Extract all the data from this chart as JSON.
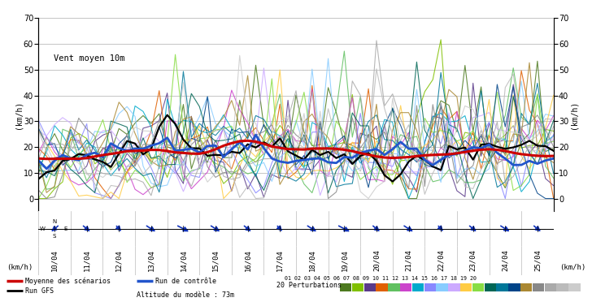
{
  "ylabel_left": "(km/h)",
  "ylabel_right": "(km/h)",
  "ylim": [
    -5,
    70
  ],
  "yticks": [
    0,
    10,
    20,
    30,
    40,
    50,
    60,
    70
  ],
  "x_labels": [
    "10/04",
    "11/04",
    "12/04",
    "13/04",
    "14/04",
    "15/04",
    "16/04",
    "17/04",
    "18/04",
    "19/04",
    "20/04",
    "21/04",
    "22/04",
    "23/04",
    "24/04",
    "25/04"
  ],
  "wind_direction_label": "Vent moyen 10m",
  "legend_moyenne": "Moyenne des scénarios",
  "legend_run_ctrl": "Run de contrôle",
  "legend_run_gfs": "Run GFS",
  "legend_perturbations": "20 Perturbations",
  "altitude_label": "Altitude du modèle : 73m",
  "perturbation_colors": [
    "#4d7a1f",
    "#80c000",
    "#5a3a8a",
    "#e06000",
    "#60c060",
    "#cc44cc",
    "#00aacc",
    "#8888ff",
    "#88ccff",
    "#ccaaff",
    "#ffcc44",
    "#88dd44",
    "#006655",
    "#007799",
    "#004488",
    "#aa8833",
    "#888888",
    "#aaaaaa",
    "#bbbbbb",
    "#cccccc"
  ],
  "perturbation_labels": [
    "01",
    "02",
    "03",
    "04",
    "05",
    "06",
    "07",
    "08",
    "09",
    "10",
    "11",
    "12",
    "13",
    "14",
    "15",
    "16",
    "17",
    "18",
    "19",
    "20"
  ],
  "background_color": "#ffffff",
  "grid_color": "#bbbbbb",
  "avg_color": "#cc0000",
  "ctrl_color": "#2255cc",
  "gfs_color": "#000000"
}
